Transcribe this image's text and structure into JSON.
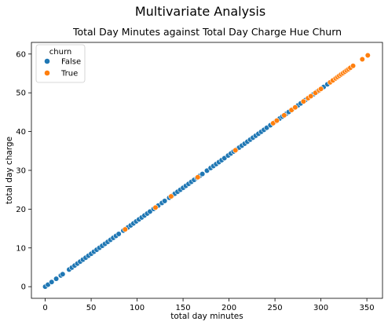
{
  "figure": {
    "suptitle": "Multivariate Analysis"
  },
  "chart_data": {
    "type": "scatter",
    "title": "Total Day Minutes against Total Day Charge Hue Churn",
    "xlabel": "total day minutes",
    "ylabel": "total day charge",
    "xlim": [
      -15,
      367
    ],
    "ylim": [
      -3,
      63
    ],
    "xticks": [
      0,
      50,
      100,
      150,
      200,
      250,
      300,
      350
    ],
    "yticks": [
      0,
      10,
      20,
      30,
      40,
      50,
      60
    ],
    "grid": false,
    "legend": {
      "title": "churn",
      "placement": "top-left",
      "entries": [
        "False",
        "True"
      ]
    },
    "series": [
      {
        "name": "False",
        "color": "#1f77b4",
        "x": [
          0,
          3,
          7,
          12,
          17,
          19,
          26,
          29,
          32,
          35,
          38,
          41,
          44,
          47,
          50,
          53,
          56,
          59,
          62,
          65,
          68,
          71,
          74,
          77,
          80,
          85,
          90,
          93,
          96,
          99,
          102,
          105,
          108,
          111,
          114,
          118,
          123,
          127,
          130,
          135,
          138,
          141,
          144,
          147,
          150,
          153,
          156,
          159,
          162,
          165,
          168,
          171,
          176,
          180,
          183,
          186,
          189,
          192,
          195,
          199,
          202,
          205,
          208,
          211,
          214,
          217,
          220,
          223,
          226,
          229,
          232,
          235,
          238,
          241,
          245,
          251,
          255,
          258,
          262,
          265,
          269,
          275,
          278,
          283,
          292,
          296,
          303,
          307
        ],
        "y": [
          0,
          0.51,
          1.19,
          2.04,
          2.89,
          3.23,
          4.42,
          4.93,
          5.44,
          5.95,
          6.46,
          6.97,
          7.48,
          7.99,
          8.5,
          9.01,
          9.52,
          10.03,
          10.54,
          11.05,
          11.56,
          12.07,
          12.58,
          13.09,
          13.6,
          14.45,
          15.3,
          15.81,
          16.32,
          16.83,
          17.34,
          17.85,
          18.36,
          18.87,
          19.38,
          20.06,
          20.91,
          21.59,
          22.1,
          22.95,
          23.46,
          23.97,
          24.48,
          24.99,
          25.5,
          26.01,
          26.52,
          27.03,
          27.54,
          28.05,
          28.56,
          29.07,
          29.92,
          30.6,
          31.11,
          31.62,
          32.13,
          32.64,
          33.15,
          33.83,
          34.34,
          34.85,
          35.36,
          35.87,
          36.38,
          36.89,
          37.4,
          37.91,
          38.42,
          38.93,
          39.44,
          39.95,
          40.46,
          40.97,
          41.65,
          42.67,
          43.35,
          43.86,
          44.54,
          45.05,
          45.73,
          46.75,
          47.26,
          48.11,
          49.64,
          50.32,
          51.51,
          52.19
        ]
      },
      {
        "name": "True",
        "color": "#ff7f0e",
        "x": [
          87,
          120,
          137,
          166,
          207,
          248,
          252,
          260,
          268,
          272,
          281,
          286,
          289,
          294,
          298,
          300,
          310,
          313,
          316,
          318,
          320,
          322,
          324,
          326,
          328,
          330,
          332,
          335,
          345,
          351
        ],
        "y": [
          14.79,
          20.4,
          23.29,
          28.22,
          35.19,
          42.16,
          42.84,
          44.2,
          45.56,
          46.24,
          47.77,
          48.62,
          49.13,
          49.98,
          50.66,
          51,
          52.7,
          53.21,
          53.72,
          54.06,
          54.4,
          54.74,
          55.08,
          55.42,
          55.76,
          56.1,
          56.44,
          56.95,
          58.65,
          59.67
        ]
      }
    ]
  }
}
